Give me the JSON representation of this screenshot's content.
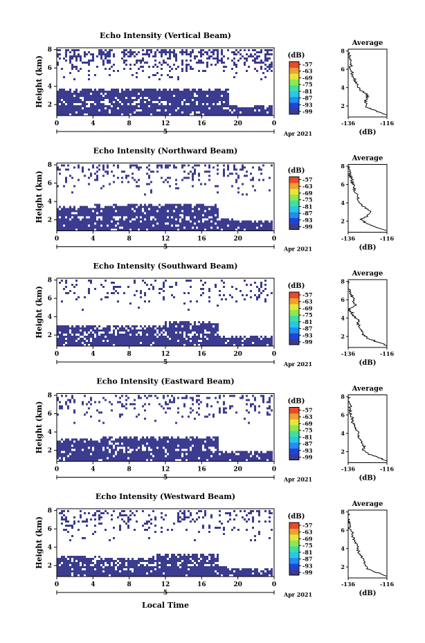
{
  "figure": {
    "xlabel": "Local Time",
    "date_label": "Apr 2021",
    "colorbar": {
      "unit": "(dB)",
      "ticks": [
        "-57",
        "-63",
        "-69",
        "-75",
        "-81",
        "-87",
        "-93",
        "-99"
      ],
      "colors": [
        "#3b3b8f",
        "#1f45d6",
        "#1f8ef0",
        "#28c8e8",
        "#3fe0a0",
        "#8ee850",
        "#e6e63a",
        "#f0a030",
        "#e84a2a"
      ]
    },
    "profile_title": "Average",
    "profile_xlabel": "(dB)"
  },
  "chart_data": [
    {
      "type": "heatmap",
      "title": "Echo Intensity (Vertical Beam)",
      "ylabel": "Height (km)",
      "x_ticks": [
        "0",
        "4",
        "8",
        "12",
        "16",
        "20",
        "0"
      ],
      "date_mark": "5",
      "y_ticks": [
        "2",
        "4",
        "6",
        "8"
      ],
      "xlim": [
        0,
        24
      ],
      "ylim": [
        0.8,
        8.2
      ],
      "lower_layer_top_km": [
        3.8,
        3.8,
        3.8,
        3.8,
        3.8,
        3.8,
        3.8,
        3.8,
        3.8,
        3.8,
        3.8,
        3.8,
        3.8,
        3.8,
        3.8,
        3.8,
        3.8,
        3.8,
        3.8,
        2.0,
        1.9,
        1.9,
        1.9,
        1.9
      ],
      "upper_echo_fraction": 0.35,
      "profile": {
        "xlim": [
          -136,
          -116
        ],
        "x_ticks": [
          "-136",
          "-116"
        ],
        "y_ticks": [
          "2",
          "4",
          "6",
          "8"
        ],
        "ylim": [
          0.8,
          8.2
        ],
        "heights": [
          1.0,
          1.4,
          1.8,
          2.2,
          2.6,
          3.0,
          3.4,
          3.8,
          4.2,
          4.6,
          5.0,
          5.4,
          5.8,
          6.2,
          6.6,
          7.0,
          7.4,
          7.8,
          8.0
        ],
        "values": [
          -116,
          -121,
          -126,
          -127,
          -127,
          -126,
          -127,
          -130,
          -131,
          -132,
          -133,
          -134,
          -134,
          -135,
          -134,
          -135,
          -135,
          -136,
          -136
        ]
      }
    },
    {
      "type": "heatmap",
      "title": "Echo Intensity (Northward Beam)",
      "ylabel": "Height (km)",
      "x_ticks": [
        "0",
        "4",
        "8",
        "12",
        "16",
        "20",
        "0"
      ],
      "date_mark": "5",
      "y_ticks": [
        "2",
        "4",
        "6",
        "8"
      ],
      "xlim": [
        0,
        24
      ],
      "ylim": [
        0.8,
        8.2
      ],
      "lower_layer_top_km": [
        3.6,
        3.6,
        3.6,
        3.6,
        3.7,
        3.8,
        3.8,
        3.8,
        3.8,
        3.8,
        3.8,
        3.8,
        3.8,
        3.8,
        3.8,
        3.8,
        3.8,
        3.8,
        2.2,
        2.2,
        2.0,
        2.0,
        2.0,
        2.0
      ],
      "upper_echo_fraction": 0.18,
      "profile": {
        "xlim": [
          -136,
          -116
        ],
        "x_ticks": [
          "-136",
          "-116"
        ],
        "y_ticks": [
          "2",
          "4",
          "6",
          "8"
        ],
        "ylim": [
          0.8,
          8.2
        ],
        "heights": [
          1.0,
          1.4,
          1.8,
          2.2,
          2.6,
          3.0,
          3.4,
          3.8,
          4.2,
          4.6,
          5.0,
          5.4,
          5.8,
          6.2,
          6.6,
          7.0,
          7.4,
          7.8,
          8.0
        ],
        "values": [
          -116,
          -122,
          -127,
          -129,
          -126,
          -124,
          -127,
          -129,
          -131,
          -131,
          -132,
          -133,
          -133,
          -134,
          -134,
          -135,
          -135,
          -136,
          -136
        ]
      }
    },
    {
      "type": "heatmap",
      "title": "Echo Intensity (Southward Beam)",
      "ylabel": "Height (km)",
      "x_ticks": [
        "0",
        "4",
        "8",
        "12",
        "16",
        "20",
        "0"
      ],
      "date_mark": "5",
      "y_ticks": [
        "2",
        "4",
        "6",
        "8"
      ],
      "xlim": [
        0,
        24
      ],
      "ylim": [
        0.8,
        8.2
      ],
      "lower_layer_top_km": [
        3.2,
        3.2,
        3.2,
        3.1,
        3.0,
        3.0,
        3.0,
        3.0,
        3.0,
        3.0,
        3.0,
        3.0,
        3.6,
        3.6,
        3.6,
        3.6,
        3.6,
        3.4,
        2.0,
        2.0,
        2.0,
        2.0,
        2.0,
        2.0
      ],
      "upper_echo_fraction": 0.16,
      "profile": {
        "xlim": [
          -136,
          -116
        ],
        "x_ticks": [
          "-136",
          "-116"
        ],
        "y_ticks": [
          "2",
          "4",
          "6",
          "8"
        ],
        "ylim": [
          0.8,
          8.2
        ],
        "heights": [
          1.0,
          1.4,
          1.8,
          2.2,
          2.6,
          3.0,
          3.4,
          3.8,
          4.2,
          4.6,
          5.0,
          5.4,
          5.8,
          6.2,
          6.6,
          7.0,
          7.4,
          7.8,
          8.0
        ],
        "values": [
          -116,
          -121,
          -126,
          -128,
          -129,
          -130,
          -131,
          -131,
          -133,
          -134,
          -136,
          -132,
          -134,
          -133,
          -135,
          -135,
          -136,
          -136,
          -136
        ]
      }
    },
    {
      "type": "heatmap",
      "title": "Echo Intensity (Eastward Beam)",
      "ylabel": "Height (km)",
      "x_ticks": [
        "0",
        "4",
        "8",
        "12",
        "16",
        "20",
        "0"
      ],
      "date_mark": "5",
      "y_ticks": [
        "2",
        "4",
        "6",
        "8"
      ],
      "xlim": [
        0,
        24
      ],
      "ylim": [
        0.8,
        8.2
      ],
      "lower_layer_top_km": [
        3.3,
        3.3,
        3.3,
        3.3,
        3.3,
        3.5,
        3.6,
        3.6,
        3.6,
        3.6,
        3.6,
        3.6,
        3.6,
        3.6,
        3.6,
        3.6,
        3.6,
        3.6,
        2.0,
        2.0,
        2.0,
        2.0,
        2.0,
        2.0
      ],
      "upper_echo_fraction": 0.16,
      "profile": {
        "xlim": [
          -136,
          -116
        ],
        "x_ticks": [
          "-136",
          "-116"
        ],
        "y_ticks": [
          "2",
          "4",
          "6",
          "8"
        ],
        "ylim": [
          0.8,
          8.2
        ],
        "heights": [
          1.0,
          1.4,
          1.8,
          2.2,
          2.6,
          3.0,
          3.4,
          3.8,
          4.2,
          4.6,
          5.0,
          5.4,
          5.8,
          6.2,
          6.6,
          7.0,
          7.4,
          7.8,
          8.0
        ],
        "values": [
          -116,
          -121,
          -126,
          -128,
          -128,
          -129,
          -130,
          -131,
          -131,
          -132,
          -133,
          -134,
          -134,
          -135,
          -135,
          -135,
          -136,
          -136,
          -136
        ]
      }
    },
    {
      "type": "heatmap",
      "title": "Echo Intensity (Westward Beam)",
      "ylabel": "Height (km)",
      "x_ticks": [
        "0",
        "4",
        "8",
        "12",
        "16",
        "20",
        "0"
      ],
      "date_mark": "5",
      "y_ticks": [
        "2",
        "4",
        "6",
        "8"
      ],
      "xlim": [
        0,
        24
      ],
      "ylim": [
        0.8,
        8.2
      ],
      "lower_layer_top_km": [
        3.2,
        3.2,
        3.2,
        3.2,
        3.0,
        2.9,
        2.9,
        2.9,
        2.9,
        2.9,
        3.0,
        3.3,
        3.3,
        3.3,
        3.3,
        3.3,
        3.3,
        3.3,
        2.0,
        1.8,
        1.8,
        1.8,
        1.8,
        1.8
      ],
      "upper_echo_fraction": 0.2,
      "profile": {
        "xlim": [
          -136,
          -116
        ],
        "x_ticks": [
          "-136",
          "-116"
        ],
        "y_ticks": [
          "2",
          "4",
          "6",
          "8"
        ],
        "ylim": [
          0.8,
          8.2
        ],
        "heights": [
          1.0,
          1.4,
          1.8,
          2.2,
          2.6,
          3.0,
          3.4,
          3.8,
          4.2,
          4.6,
          5.0,
          5.4,
          5.8,
          6.2,
          6.6,
          7.0,
          7.4,
          7.8,
          8.0
        ],
        "values": [
          -116,
          -121,
          -126,
          -127,
          -128,
          -129,
          -130,
          -131,
          -131,
          -132,
          -133,
          -134,
          -134,
          -135,
          -135,
          -136,
          -136,
          -136,
          -136
        ]
      }
    }
  ]
}
